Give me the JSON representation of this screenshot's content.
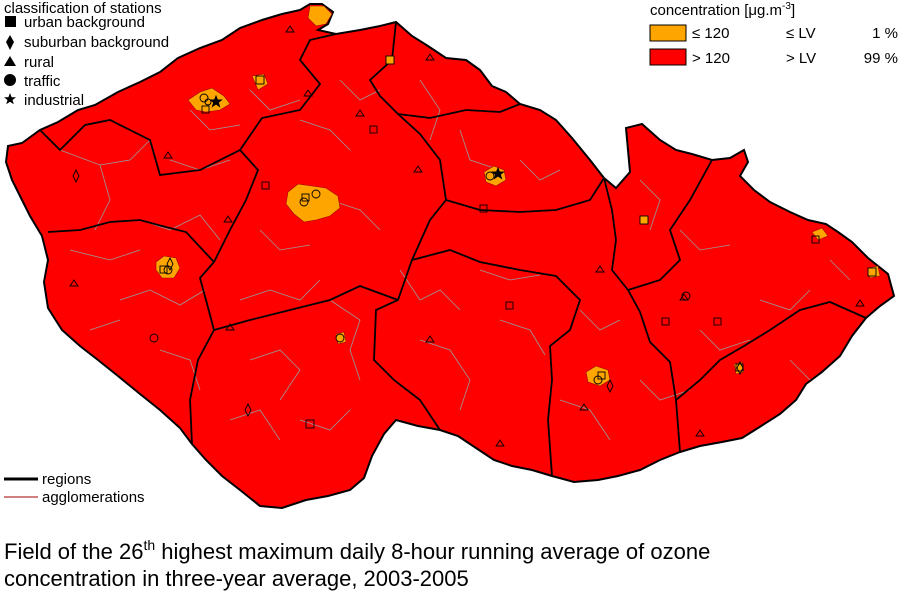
{
  "station_legend": {
    "title": "classification of stations",
    "items": [
      {
        "label": "urban background",
        "symbol": "square-icon"
      },
      {
        "label": "suburban background",
        "symbol": "diamond-icon"
      },
      {
        "label": "rural",
        "symbol": "triangle-icon"
      },
      {
        "label": "traffic",
        "symbol": "circle-icon"
      },
      {
        "label": "industrial",
        "symbol": "star-icon"
      }
    ]
  },
  "concentration_legend": {
    "title_main": "concentration [μg.m",
    "title_exponent": "-3",
    "title_close": "]",
    "rows": [
      {
        "value": "≤ 120",
        "limit": "≤ LV",
        "share": "1 %",
        "color": "#ffa500"
      },
      {
        "value": "> 120",
        "limit": "> LV",
        "share": "99 %",
        "color": "#ff0000"
      }
    ]
  },
  "boundary_legend": {
    "regions": "regions",
    "agglomerations": "agglomerations"
  },
  "caption": {
    "line1_before": "Field of the 26",
    "ordinal": "th",
    "line1_after": " highest maximum daily 8-hour running average of ozone",
    "line2": "concentration in three-year average, 2003-2005"
  },
  "colors": {
    "above_lv": "#ff0000",
    "below_lv": "#ffa500",
    "region_border": "#000000",
    "district_border": "#9a9a9a",
    "agglomeration_border": "#a00000"
  }
}
